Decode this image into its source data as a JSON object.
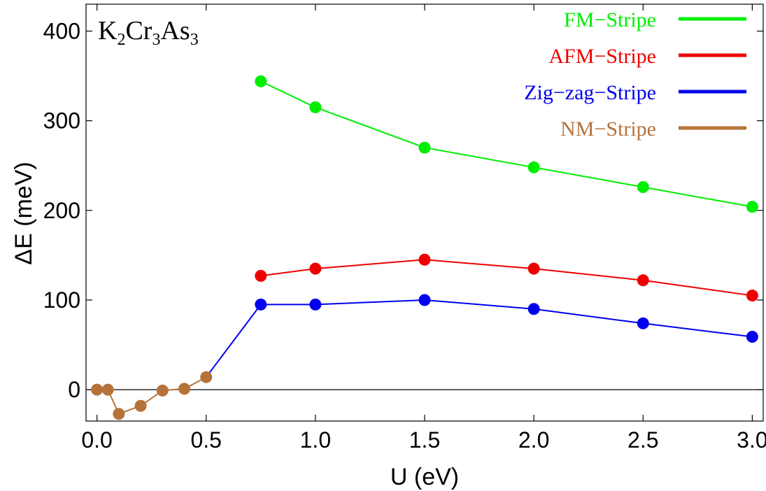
{
  "chart_data": {
    "type": "line",
    "title": "",
    "material_label": {
      "base": [
        "K",
        "Cr",
        "As"
      ],
      "subscripts": [
        "2",
        "3",
        "3"
      ]
    },
    "xlabel": "U (eV)",
    "ylabel": "ΔE (meV)",
    "xlim": [
      -0.05,
      3.05
    ],
    "ylim": [
      -35,
      430
    ],
    "x_ticks": [
      0.0,
      0.5,
      1.0,
      1.5,
      2.0,
      2.5,
      3.0
    ],
    "x_tick_labels": [
      "0.0",
      "0.5",
      "1.0",
      "1.5",
      "2.0",
      "2.5",
      "3.0"
    ],
    "y_ticks": [
      0,
      100,
      200,
      300,
      400
    ],
    "y_tick_labels": [
      "0",
      "100",
      "200",
      "300",
      "400"
    ],
    "zero_line": true,
    "legend_position": "top-right",
    "series": [
      {
        "name": "FM−Stripe",
        "color": "#00ee00",
        "x": [
          0.75,
          1.0,
          1.5,
          2.0,
          2.5,
          3.0
        ],
        "y": [
          344,
          315,
          270,
          248,
          226,
          204
        ]
      },
      {
        "name": "AFM−Stripe",
        "color": "#ee0000",
        "x": [
          0.75,
          1.0,
          1.5,
          2.0,
          2.5,
          3.0
        ],
        "y": [
          127,
          135,
          145,
          135,
          122,
          105
        ]
      },
      {
        "name": "Zig−zag−Stripe",
        "color": "#0000ee",
        "x": [
          0.5,
          0.75,
          1.0,
          1.5,
          2.0,
          2.5,
          3.0
        ],
        "y": [
          14,
          95,
          95,
          100,
          90,
          74,
          59
        ],
        "marker_from_index": 1
      },
      {
        "name": "NM−Stripe",
        "color": "#b5733b",
        "x": [
          0.0,
          0.05,
          0.1,
          0.2,
          0.3,
          0.4,
          0.5
        ],
        "y": [
          0,
          0,
          -27,
          -18,
          -1,
          1,
          14
        ]
      }
    ]
  }
}
